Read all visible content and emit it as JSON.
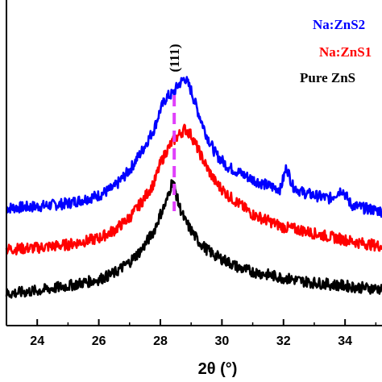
{
  "chart_data": {
    "type": "line",
    "title": "",
    "xlabel": "2θ (°)",
    "ylabel": "",
    "xlim": [
      23,
      35.2
    ],
    "ylim": [
      0,
      1
    ],
    "xticks": [
      24,
      26,
      28,
      30,
      32,
      34
    ],
    "xtick_labels": [
      "24",
      "26",
      "28",
      "30",
      "32",
      "34"
    ],
    "grid": false,
    "legend_position": "top-right",
    "annotation": {
      "label": "(111)",
      "x": 28.45
    },
    "series": [
      {
        "name": "Na:ZnS2",
        "color": "#0000ff",
        "x": [
          23,
          24,
          25,
          26,
          26.5,
          27,
          27.4,
          27.8,
          28.0,
          28.2,
          28.4,
          28.6,
          28.8,
          29.0,
          29.2,
          29.5,
          29.8,
          30.2,
          30.6,
          31.0,
          31.5,
          31.9,
          32.1,
          32.3,
          32.6,
          33.0,
          33.5,
          33.9,
          34.2,
          34.6,
          35.2
        ],
        "values": [
          0.37,
          0.375,
          0.385,
          0.41,
          0.435,
          0.49,
          0.55,
          0.62,
          0.68,
          0.72,
          0.73,
          0.76,
          0.78,
          0.74,
          0.68,
          0.6,
          0.54,
          0.5,
          0.48,
          0.46,
          0.44,
          0.43,
          0.5,
          0.44,
          0.42,
          0.41,
          0.4,
          0.43,
          0.38,
          0.37,
          0.36
        ]
      },
      {
        "name": "Na:ZnS1",
        "color": "#ff0000",
        "x": [
          23,
          24,
          25,
          26,
          26.5,
          27,
          27.4,
          27.8,
          28.0,
          28.2,
          28.4,
          28.6,
          28.8,
          29.0,
          29.2,
          29.5,
          29.8,
          30.2,
          30.6,
          31.0,
          31.5,
          32.0,
          32.6,
          33.0,
          33.5,
          34.0,
          34.5,
          35.2
        ],
        "values": [
          0.24,
          0.245,
          0.255,
          0.275,
          0.3,
          0.34,
          0.39,
          0.45,
          0.51,
          0.55,
          0.58,
          0.6,
          0.62,
          0.6,
          0.56,
          0.5,
          0.45,
          0.41,
          0.38,
          0.35,
          0.33,
          0.31,
          0.3,
          0.29,
          0.28,
          0.27,
          0.26,
          0.25
        ]
      },
      {
        "name": "Pure ZnS",
        "color": "#000000",
        "x": [
          23,
          24,
          25,
          26,
          26.5,
          27,
          27.4,
          27.8,
          28.0,
          28.2,
          28.4,
          28.6,
          28.8,
          29.0,
          29.2,
          29.5,
          29.8,
          30.2,
          30.6,
          31.0,
          31.5,
          32.0,
          32.6,
          33.0,
          33.5,
          34.0,
          34.5,
          35.2
        ],
        "values": [
          0.1,
          0.11,
          0.125,
          0.145,
          0.165,
          0.2,
          0.24,
          0.3,
          0.35,
          0.39,
          0.46,
          0.38,
          0.33,
          0.3,
          0.27,
          0.24,
          0.22,
          0.2,
          0.18,
          0.17,
          0.16,
          0.15,
          0.14,
          0.135,
          0.13,
          0.125,
          0.12,
          0.115
        ]
      }
    ]
  },
  "colors": {
    "axis": "#000000",
    "dash_line": "#e040fb"
  }
}
